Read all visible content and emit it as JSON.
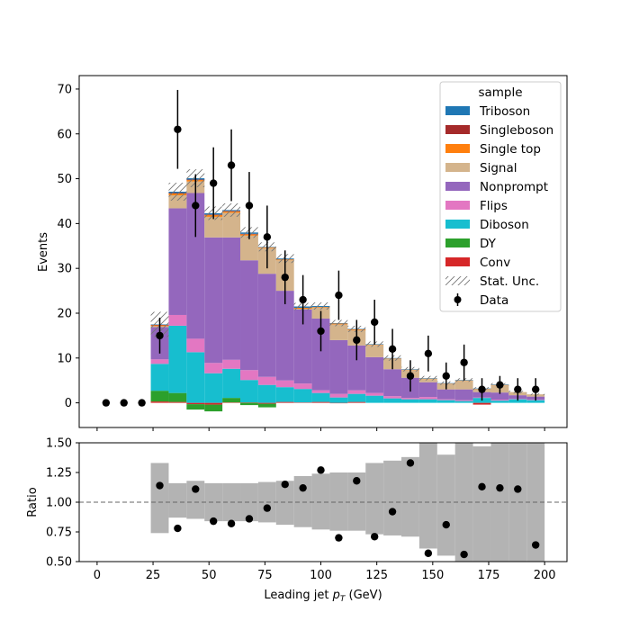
{
  "chart_data": [
    {
      "type": "bar",
      "xlabel": "Leading jet  p_T (GeV)",
      "ylabel": "Events",
      "xlim": [
        -8,
        210
      ],
      "ylim": [
        -5.5,
        73
      ],
      "xticks": [
        0,
        25,
        50,
        75,
        100,
        125,
        150,
        175,
        200
      ],
      "yticks": [
        0,
        10,
        20,
        30,
        40,
        50,
        60,
        70
      ],
      "bin_edges": [
        24,
        32,
        40,
        48,
        56,
        64,
        72,
        80,
        88,
        96,
        104,
        112,
        120,
        128,
        136,
        144,
        152,
        160,
        168,
        176,
        184,
        192,
        200
      ],
      "legend_title": "sample",
      "legend_position": "top-right",
      "series": [
        {
          "name": "Conv",
          "color": "#d62728",
          "values": [
            0.3,
            0.2,
            -0.3,
            -0.4,
            0.1,
            0.1,
            -0.2,
            0.2,
            0.1,
            0.2,
            -0.1,
            0.2,
            0,
            0,
            0,
            0,
            0,
            0,
            -0.4,
            0,
            0,
            0
          ]
        },
        {
          "name": "DY",
          "color": "#2ca02c",
          "values": [
            2.4,
            2.0,
            -1.2,
            -1.5,
            1.0,
            -0.5,
            -0.8,
            0,
            0,
            0,
            0,
            0,
            0,
            0,
            0,
            0,
            0,
            0,
            0,
            0,
            0,
            0
          ]
        },
        {
          "name": "Diboson",
          "color": "#17becf",
          "values": [
            6.0,
            15.0,
            11.3,
            6.6,
            6.5,
            5.0,
            4.0,
            3.3,
            3.0,
            2.0,
            1.2,
            1.8,
            1.6,
            1.0,
            0.8,
            0.8,
            0.6,
            0.4,
            1.1,
            0.5,
            0.8,
            0.6
          ]
        },
        {
          "name": "Flips",
          "color": "#e377c2",
          "values": [
            1.0,
            2.4,
            3.0,
            2.3,
            2.0,
            2.2,
            1.8,
            1.5,
            1.2,
            0.6,
            0.8,
            0.8,
            0.6,
            0.5,
            0.3,
            0.5,
            0.2,
            0.2,
            0.1,
            0.2,
            0.1,
            0.1
          ]
        },
        {
          "name": "Nonprompt",
          "color": "#9467bd",
          "values": [
            7.2,
            23.8,
            32.5,
            28.0,
            27.3,
            24.5,
            23.0,
            20.0,
            16.5,
            16.0,
            12.0,
            10.0,
            8.0,
            6.0,
            4.5,
            3.3,
            2.2,
            2.4,
            1.2,
            1.6,
            0.8,
            0.7
          ]
        },
        {
          "name": "Signal",
          "color": "#d4b48c",
          "values": [
            0.2,
            2.9,
            2.6,
            4.6,
            5.5,
            5.5,
            5.7,
            6.8,
            0.2,
            2.5,
            3.5,
            3.4,
            2.7,
            2.3,
            1.7,
            0.7,
            1.2,
            1.9,
            0.6,
            1.6,
            0.7,
            0.5
          ]
        },
        {
          "name": "Single top",
          "color": "#ff7f0e",
          "values": [
            0.2,
            0.4,
            0.3,
            0.4,
            0.3,
            0.3,
            0.2,
            0.2,
            0.2,
            0.1,
            0.2,
            0.2,
            0.1,
            0.1,
            0.1,
            0.1,
            0.1,
            0.1,
            0.1,
            0.1,
            0,
            0
          ]
        },
        {
          "name": "Singleboson",
          "color": "#a52a2a",
          "values": [
            0.1,
            0.1,
            0.1,
            0.1,
            0.1,
            0.1,
            0,
            0,
            0,
            0,
            0,
            0,
            0,
            0,
            0,
            0,
            0,
            0,
            0,
            0,
            0,
            0
          ]
        },
        {
          "name": "Triboson",
          "color": "#1f77b4",
          "values": [
            0.1,
            0.3,
            0.3,
            0.3,
            0.2,
            0.3,
            0.1,
            0.2,
            0.3,
            0.2,
            0.1,
            0.1,
            0.1,
            0.1,
            0.1,
            0.1,
            0.1,
            0.1,
            0.1,
            0.1,
            0,
            0
          ]
        }
      ],
      "stat_unc": [
        2.8,
        2.0,
        2.0,
        1.5,
        1.5,
        1.2,
        1.0,
        1.0,
        0.8,
        0.8,
        0.7,
        0.7,
        0.6,
        0.6,
        0.5,
        0.5,
        0.4,
        0.4,
        0.3,
        0.3,
        0.3,
        0.2
      ],
      "stat_unc_label": "Stat. Unc.",
      "data": {
        "name": "Data",
        "x": [
          4,
          12,
          20,
          28,
          36,
          44,
          52,
          60,
          68,
          76,
          84,
          92,
          100,
          108,
          116,
          124,
          132,
          140,
          148,
          156,
          164,
          172,
          180,
          188,
          196
        ],
        "y": [
          0,
          0,
          0,
          15,
          61,
          44,
          49,
          53,
          44,
          37,
          28,
          23,
          16,
          24,
          14,
          18,
          12,
          6,
          11,
          6,
          9,
          3,
          4,
          3,
          3
        ],
        "yerr": [
          0,
          0,
          0,
          4.0,
          8.8,
          7.0,
          8.0,
          8.0,
          7.5,
          7.0,
          6.0,
          5.5,
          4.5,
          5.5,
          4.5,
          5.0,
          4.5,
          3.5,
          4.0,
          3.0,
          4.0,
          2.5,
          2.0,
          2.5,
          2.5
        ]
      }
    },
    {
      "type": "scatter",
      "xlabel": "Leading jet  p_T (GeV)",
      "ylabel": "Ratio",
      "xlim": [
        -8,
        210
      ],
      "ylim": [
        0.5,
        1.5
      ],
      "xticks": [
        0,
        25,
        50,
        75,
        100,
        125,
        150,
        175,
        200
      ],
      "yticks": [
        "0.50",
        "0.75",
        "1.00",
        "1.25",
        "1.50"
      ],
      "reference_line": 1.0,
      "band_edges": [
        24,
        32,
        40,
        48,
        56,
        64,
        72,
        80,
        88,
        96,
        104,
        112,
        120,
        128,
        136,
        144,
        152,
        160,
        168,
        176,
        184,
        192,
        200
      ],
      "band_lo": [
        0.74,
        0.87,
        0.86,
        0.84,
        0.84,
        0.84,
        0.83,
        0.81,
        0.79,
        0.77,
        0.76,
        0.76,
        0.73,
        0.72,
        0.71,
        0.61,
        0.55,
        0.5,
        0.5,
        0.5,
        0.5,
        0.5
      ],
      "band_hi": [
        1.33,
        1.16,
        1.18,
        1.16,
        1.16,
        1.16,
        1.17,
        1.18,
        1.22,
        1.24,
        1.25,
        1.25,
        1.33,
        1.35,
        1.38,
        1.5,
        1.4,
        1.5,
        1.47,
        1.5,
        1.5,
        1.5
      ],
      "points": {
        "x": [
          28,
          36,
          44,
          52,
          60,
          68,
          76,
          84,
          92,
          100,
          108,
          116,
          124,
          132,
          140,
          148,
          156,
          164,
          172,
          180,
          188,
          196
        ],
        "y": [
          1.14,
          0.78,
          1.11,
          0.84,
          0.82,
          0.86,
          0.95,
          1.15,
          1.12,
          1.27,
          0.7,
          1.18,
          0.71,
          0.92,
          1.33,
          0.57,
          0.81,
          0.56,
          1.13,
          1.12,
          1.11,
          0.64
        ]
      }
    }
  ]
}
